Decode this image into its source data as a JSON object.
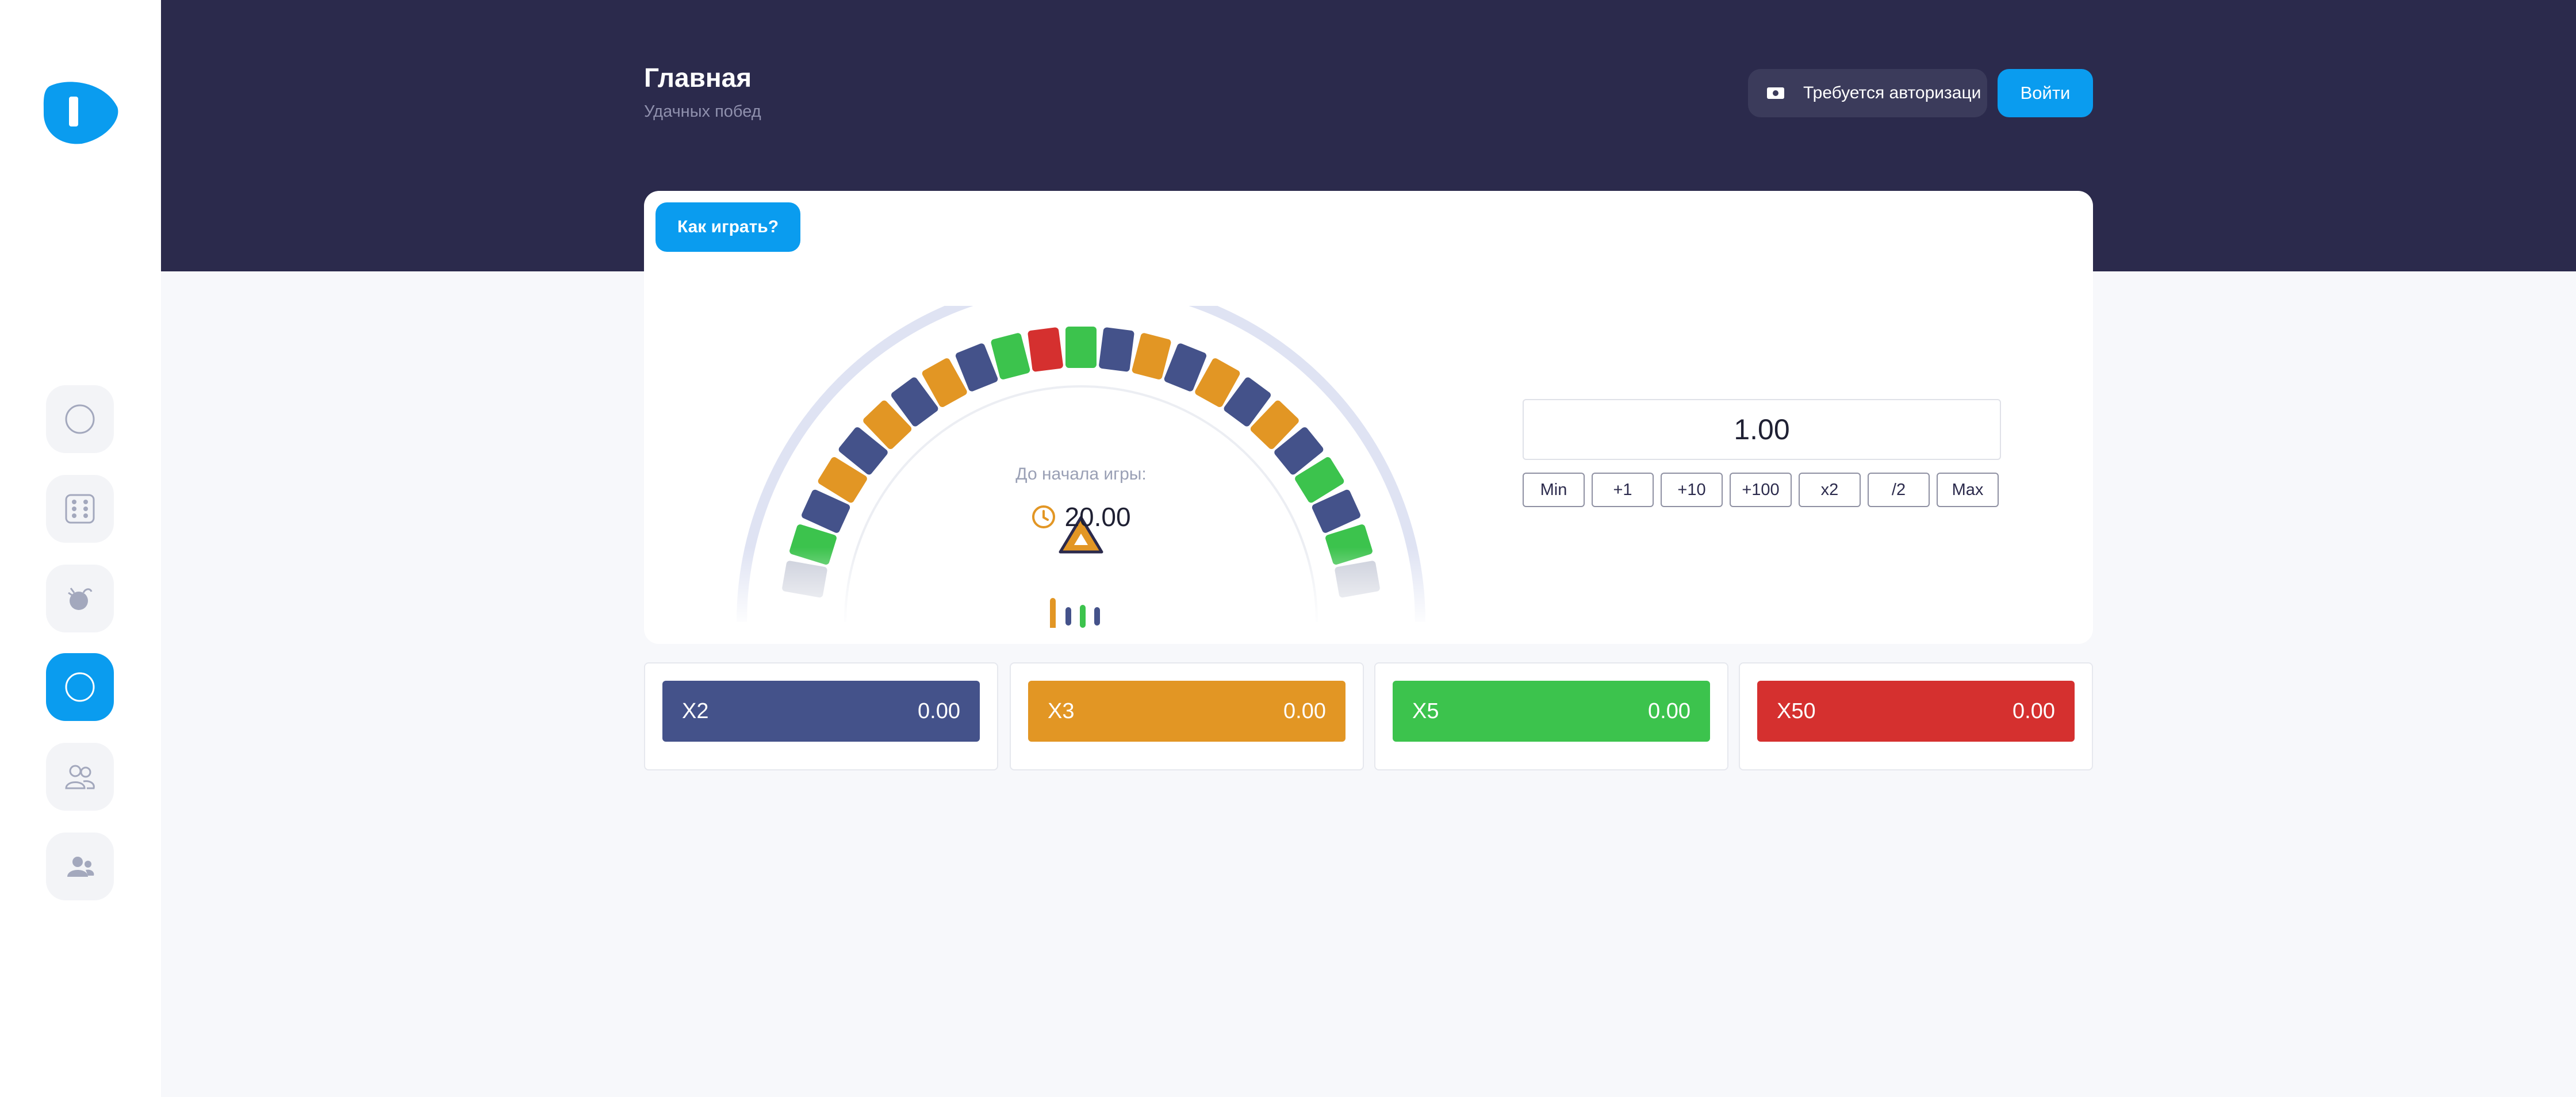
{
  "header": {
    "title": "Главная",
    "subtitle": "Удачных побед",
    "auth_status": "Требуется авторизаци",
    "login_label": "Войти"
  },
  "sidebar": {
    "items": [
      {
        "icon": "circle-icon",
        "active": false
      },
      {
        "icon": "dice-icon",
        "active": false
      },
      {
        "icon": "bomb-icon",
        "active": false
      },
      {
        "icon": "circle-icon",
        "active": true
      },
      {
        "icon": "users-icon",
        "active": false
      },
      {
        "icon": "user-group-icon",
        "active": false
      }
    ]
  },
  "game": {
    "how_to_play_label": "Как играть?",
    "countdown_label": "До начала игры:",
    "countdown_value": "20.00",
    "wheel_sectors": [
      "gray",
      "green",
      "blue",
      "orange",
      "blue",
      "orange",
      "blue",
      "orange",
      "blue",
      "green",
      "red",
      "green",
      "blue",
      "orange",
      "blue",
      "orange",
      "blue",
      "orange",
      "blue",
      "green",
      "blue",
      "green",
      "gray"
    ]
  },
  "bet": {
    "amount": "1.00",
    "quick_buttons": [
      "Min",
      "+1",
      "+10",
      "+100",
      "x2",
      "/2",
      "Max"
    ]
  },
  "multipliers": [
    {
      "label": "X2",
      "value": "0.00",
      "color": "#44528a"
    },
    {
      "label": "X3",
      "value": "0.00",
      "color": "#e29624"
    },
    {
      "label": "X5",
      "value": "0.00",
      "color": "#3cc34d"
    },
    {
      "label": "X50",
      "value": "0.00",
      "color": "#d5302f"
    }
  ],
  "colors": {
    "accent": "#0a9cef",
    "header_bg": "#2b2a4c",
    "blue": "#44528a",
    "orange": "#e29624",
    "green": "#3cc34d",
    "red": "#d5302f",
    "gray": "#c7cbd8"
  }
}
